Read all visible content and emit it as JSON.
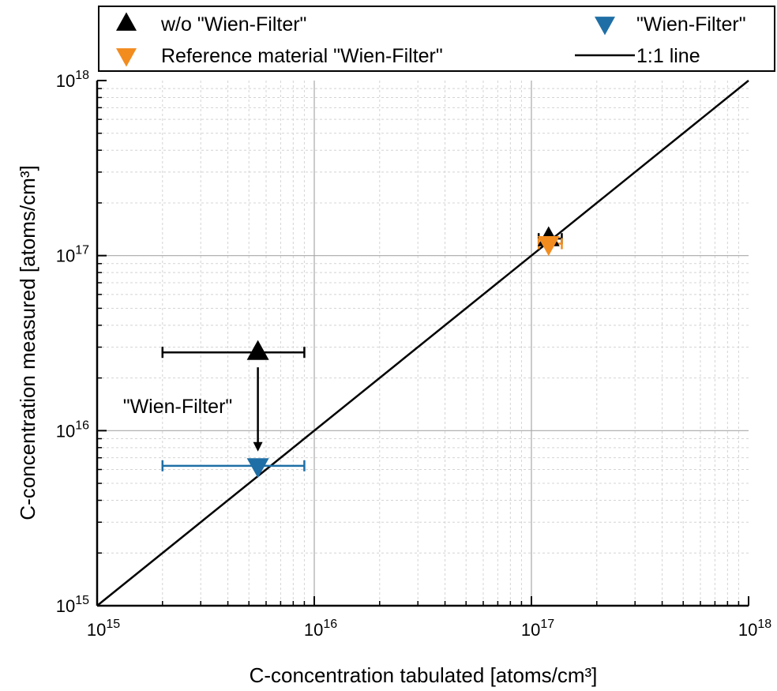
{
  "chart_data": {
    "type": "scatter",
    "x_scale": "log",
    "y_scale": "log",
    "xlim": [
      1000000000000000.0,
      1e+18
    ],
    "ylim": [
      1000000000000000.0,
      1e+18
    ],
    "xlabel": "C-concentration tabulated [atoms/cm³]",
    "ylabel": "C-concentration measured [atoms/cm³]",
    "x_ticks": [
      {
        "base": "10",
        "exp": "15",
        "value": 1000000000000000.0
      },
      {
        "base": "10",
        "exp": "16",
        "value": 1e+16
      },
      {
        "base": "10",
        "exp": "17",
        "value": 1e+17
      },
      {
        "base": "10",
        "exp": "18",
        "value": 1e+18
      }
    ],
    "y_ticks": [
      {
        "base": "10",
        "exp": "15",
        "value": 1000000000000000.0
      },
      {
        "base": "10",
        "exp": "16",
        "value": 1e+16
      },
      {
        "base": "10",
        "exp": "17",
        "value": 1e+17
      },
      {
        "base": "10",
        "exp": "18",
        "value": 1e+18
      }
    ],
    "grid": true,
    "legend_position": "top",
    "series": [
      {
        "name": "w/o \"Wien-Filter\"",
        "marker": "triangle-up",
        "color": "#000000",
        "points": [
          {
            "x": 5500000000000000.0,
            "y": 2.8e+16,
            "x_err": [
              2000000000000000.0,
              9000000000000000.0
            ]
          },
          {
            "x": 1.2e+17,
            "y": 1.25e+17,
            "x_err": [
              1.08e+17,
              1.38e+17
            ]
          }
        ]
      },
      {
        "name": "\"Wien-Filter\"",
        "marker": "triangle-down",
        "color": "#1f6fa6",
        "points": [
          {
            "x": 5500000000000000.0,
            "y": 6300000000000000.0,
            "x_err": [
              2000000000000000.0,
              9000000000000000.0
            ]
          }
        ]
      },
      {
        "name": "Reference material \"Wien-Filter\"",
        "marker": "triangle-down",
        "color": "#f28c1f",
        "points": [
          {
            "x": 1.2e+17,
            "y": 1.17e+17,
            "x_err": [
              1.08e+17,
              1.38e+17
            ]
          }
        ]
      },
      {
        "name": "1:1 line",
        "type": "line",
        "color": "#000000",
        "points": [
          {
            "x": 1000000000000000.0,
            "y": 1000000000000000.0
          },
          {
            "x": 1e+18,
            "y": 1e+18
          }
        ]
      }
    ],
    "annotations": [
      {
        "text": "\"Wien-Filter\"",
        "arrow_from": {
          "x": 5500000000000000.0,
          "y": 2.3e+16
        },
        "arrow_to": {
          "x": 5500000000000000.0,
          "y": 7600000000000000.0
        }
      }
    ],
    "legend": [
      {
        "label": "w/o \"Wien-Filter\"",
        "marker": "triangle-up",
        "color": "#000000"
      },
      {
        "label": "\"Wien-Filter\"",
        "marker": "triangle-down",
        "color": "#1f6fa6"
      },
      {
        "label": "Reference material \"Wien-Filter\"",
        "marker": "triangle-down",
        "color": "#f28c1f"
      },
      {
        "label": "1:1 line",
        "marker": "line",
        "color": "#000000"
      }
    ]
  }
}
